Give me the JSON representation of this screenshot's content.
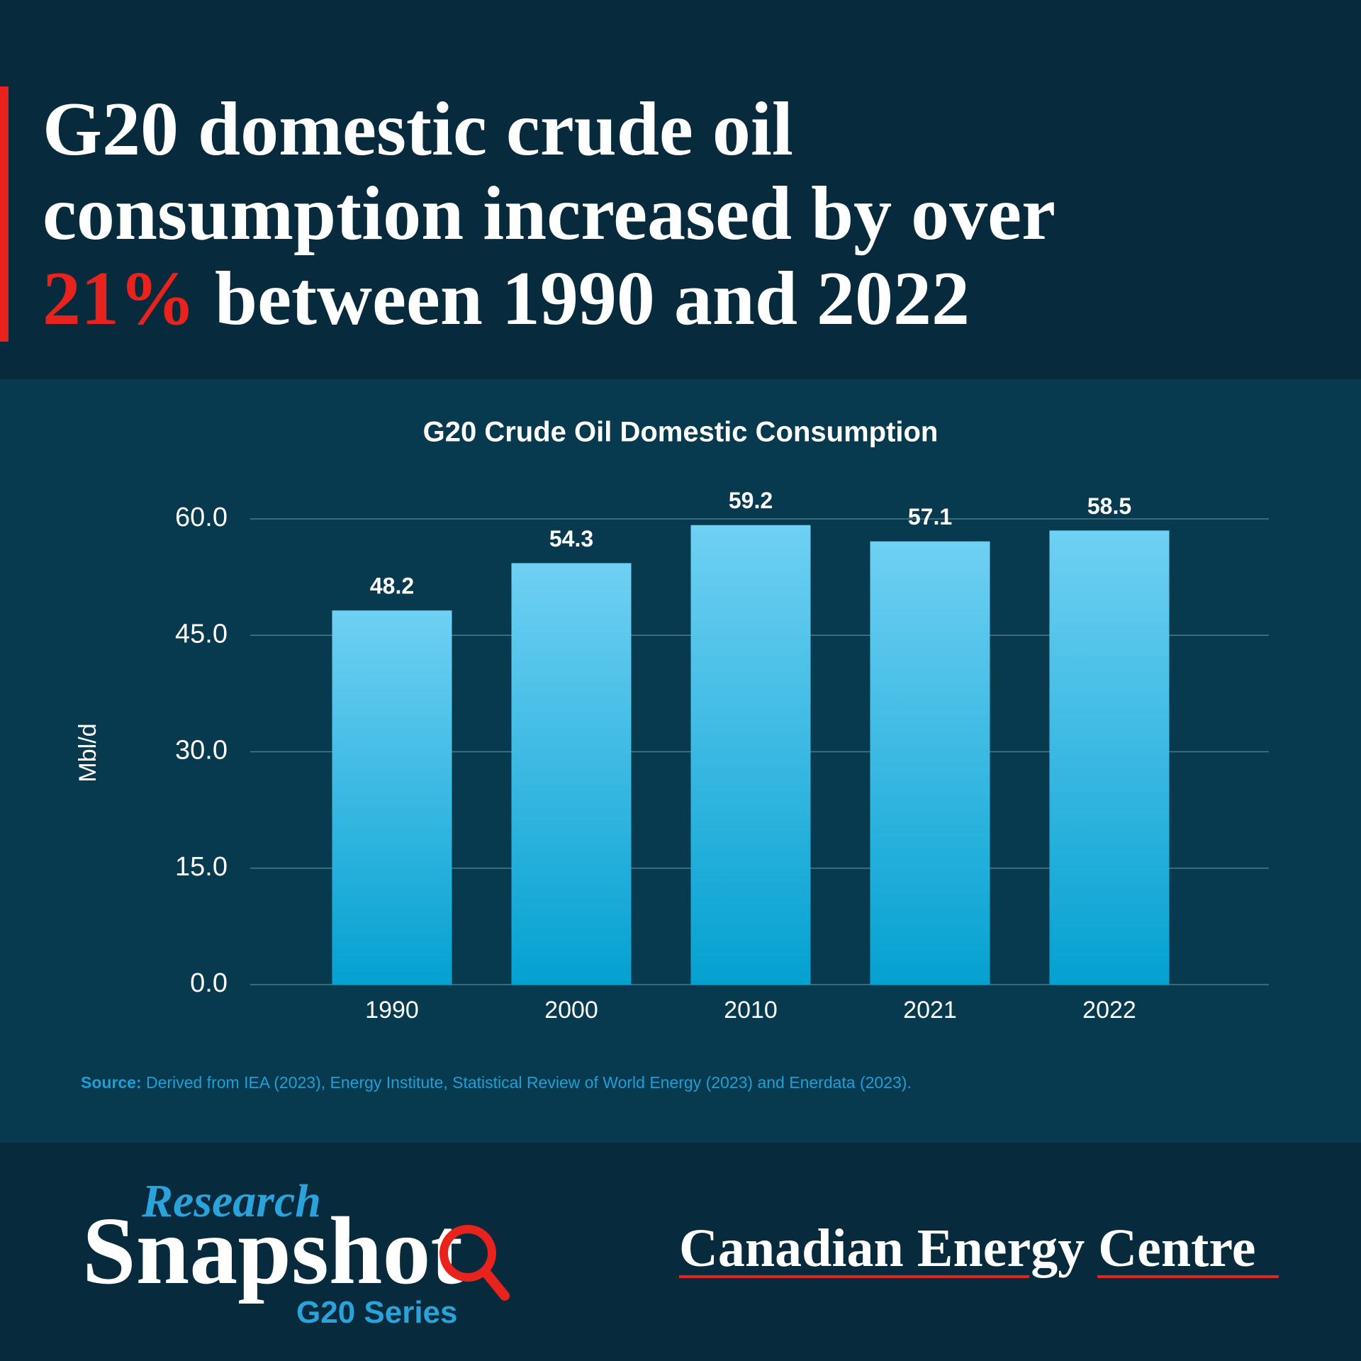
{
  "headline": {
    "lines": [
      "G20 domestic crude oil",
      "consumption increased by over"
    ],
    "highlight": "21%",
    "after": "between 1990 and 2022"
  },
  "chart_data": {
    "type": "bar",
    "title": "G20 Crude Oil Domestic Consumption",
    "ylabel": "Mbl/d",
    "categories": [
      "1990",
      "2000",
      "2010",
      "2021",
      "2022"
    ],
    "values": [
      48.2,
      54.3,
      59.2,
      57.1,
      58.5
    ],
    "gradient": [
      "#6fd0f3",
      "#04a1d1"
    ],
    "ylim": [
      0,
      60
    ],
    "yticks": [
      {
        "value": 0,
        "label": "0.0"
      },
      {
        "value": 15,
        "label": "15.0"
      },
      {
        "value": 30,
        "label": "30.0"
      },
      {
        "value": 45,
        "label": "45.0"
      },
      {
        "value": 60,
        "label": "60.0"
      }
    ],
    "grid": true,
    "source_label": "Source:",
    "source": "Derived from IEA (2023), Energy Institute, Statistical Review of World Energy (2023) and Enerdata (2023)."
  },
  "footer": {
    "research": "Research",
    "snapshot": "Snapshot",
    "series": "G20 Series",
    "brand": "Canadian Energy Centre"
  }
}
